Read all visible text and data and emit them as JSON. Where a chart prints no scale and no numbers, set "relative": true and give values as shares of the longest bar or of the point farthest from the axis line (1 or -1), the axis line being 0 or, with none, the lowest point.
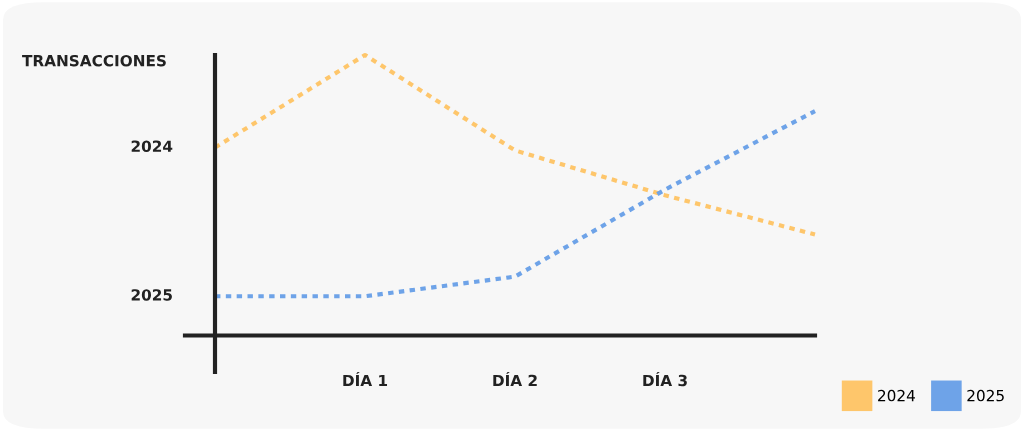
{
  "chart_data": {
    "type": "line",
    "relative": true,
    "ylabel": "TRANSACCIONES",
    "categories": [
      null,
      "DÍA 1",
      "DÍA 2",
      "DÍA 3",
      null
    ],
    "series": [
      {
        "name": "2024",
        "color": "#fec66b",
        "values": [
          0.67,
          1.0,
          0.66,
          0.5,
          0.36
        ]
      },
      {
        "name": "2025",
        "color": "#6ea3e8",
        "values": [
          0.14,
          0.14,
          0.21,
          0.52,
          0.8
        ]
      }
    ],
    "line_style": "dotted",
    "marker": "none",
    "legend": "bottom right"
  }
}
